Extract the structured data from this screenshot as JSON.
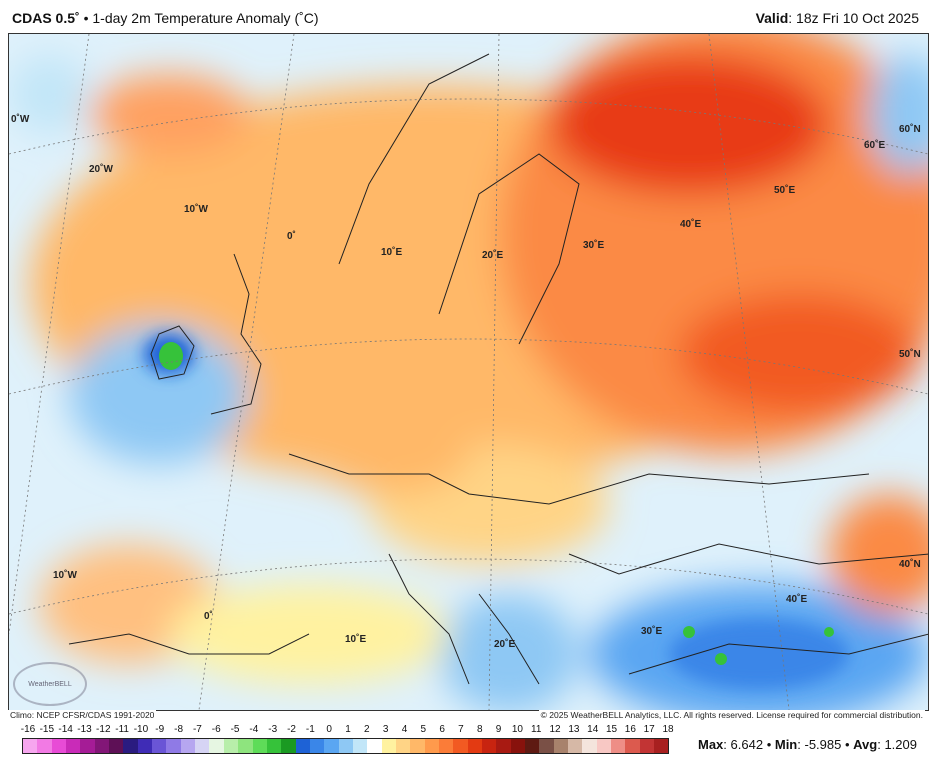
{
  "header": {
    "model": "CDAS 0.5˚",
    "title": "1-day 2m Temperature Anomaly (˚C)",
    "valid_label": "Valid",
    "valid_time": "18z Fri 10 Oct 2025"
  },
  "map": {
    "graticule_labels": [
      "0˚W",
      "20˚W",
      "10˚W",
      "0˚",
      "10˚E",
      "20˚E",
      "30˚E",
      "40˚E",
      "50˚E",
      "60˚E",
      "60˚N",
      "50˚N",
      "40˚N",
      "10˚W",
      "0˚",
      "10˚E",
      "20˚E",
      "30˚E",
      "40˚E"
    ],
    "logo_text": "WeatherBELL"
  },
  "footer": {
    "climo": "Climo: NCEP CFSR/CDAS 1991-2020",
    "copyright": "© 2025 WeatherBELL Analytics, LLC. All rights reserved. License required for commercial distribution."
  },
  "colorbar": {
    "ticks": [
      "-16",
      "-15",
      "-14",
      "-13",
      "-12",
      "-11",
      "-10",
      "-9",
      "-8",
      "-7",
      "-6",
      "-5",
      "-4",
      "-3",
      "-2",
      "-1",
      "0",
      "1",
      "2",
      "3",
      "4",
      "5",
      "6",
      "7",
      "8",
      "9",
      "10",
      "11",
      "12",
      "13",
      "14",
      "15",
      "16",
      "17",
      "18"
    ],
    "colors": [
      "#f7a6ef",
      "#f27ae4",
      "#e84bd6",
      "#c92bb8",
      "#a51c96",
      "#821677",
      "#5e1056",
      "#2a1b80",
      "#3f2cb6",
      "#6a55d6",
      "#8f7ae6",
      "#b6a6f0",
      "#d6d4f4",
      "#e6f6e2",
      "#b8eeaa",
      "#8ee47e",
      "#5edc58",
      "#36c23a",
      "#1a9a22",
      "#1e62d6",
      "#3a86e8",
      "#5aa6f2",
      "#8ec8f4",
      "#c2e6f8",
      "#ffffff",
      "#fff2a0",
      "#ffd486",
      "#ffb868",
      "#ff9a4c",
      "#fb7c38",
      "#f25a22",
      "#e33a12",
      "#c82410",
      "#a81a12",
      "#88120c",
      "#5e1a12",
      "#7a5046",
      "#a8826c",
      "#d6b8a6",
      "#f4e4dc",
      "#f8c8c4",
      "#ee8e86",
      "#dc5a4e",
      "#c23434",
      "#a82020"
    ]
  },
  "stats": {
    "max_label": "Max",
    "max": "6.642",
    "min_label": "Min",
    "min": "-5.985",
    "avg_label": "Avg",
    "avg": "1.209"
  }
}
